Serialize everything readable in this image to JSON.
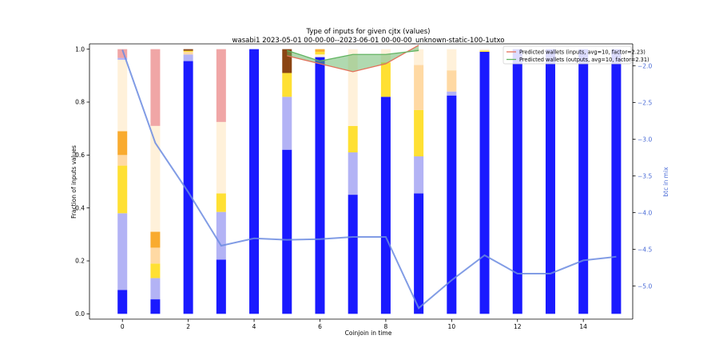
{
  "chart_data": {
    "type": "bar",
    "title": "Type of inputs for given cjtx (values)",
    "subtitle": "wasabi1 2023-05-01 00-00-00--2023-06-01 00-00-00_unknown-static-100-1utxo",
    "xlabel": "Coinjoin in time",
    "ylabel": "Fraction of inputs values",
    "y2label": "btc in mix",
    "xlim": [
      -1.0,
      15.5
    ],
    "ylim": [
      -0.02,
      1.02
    ],
    "y2lim": [
      -5.45,
      -1.7
    ],
    "x_ticks": [
      0,
      2,
      4,
      6,
      8,
      10,
      12,
      14
    ],
    "y_ticks": [
      0.0,
      0.2,
      0.4,
      0.6,
      0.8,
      1.0
    ],
    "y2_ticks": [
      -2.0,
      -2.5,
      -3.0,
      -3.5,
      -4.0,
      -4.5,
      -5.0
    ],
    "colors": {
      "blue": "#1a1aff",
      "lavender": "#b3b3f5",
      "yellow": "#ffe033",
      "orange": "#f9ab2f",
      "peach": "#ffd9a3",
      "cream": "#fff1da",
      "pink": "#f0a6a6",
      "brown": "#8b4513",
      "btc_line": "#6b8be0",
      "line_inputs": "#e3705a",
      "line_outputs": "#62b462"
    },
    "stacks": [
      [
        [
          "blue",
          0.09
        ],
        [
          "lavender",
          0.29
        ],
        [
          "yellow",
          0.18
        ],
        [
          "peach",
          0.04
        ],
        [
          "orange",
          0.09
        ],
        [
          "cream",
          0.27
        ],
        [
          "lavender",
          0.007
        ],
        [
          "pink",
          0.033
        ]
      ],
      [
        [
          "blue",
          0.055
        ],
        [
          "lavender",
          0.08
        ],
        [
          "yellow",
          0.055
        ],
        [
          "peach",
          0.06
        ],
        [
          "orange",
          0.06
        ],
        [
          "cream",
          0.4
        ],
        [
          "pink",
          0.29
        ]
      ],
      [
        [
          "blue",
          0.955
        ],
        [
          "lavender",
          0.025
        ],
        [
          "peach",
          0.01
        ],
        [
          "yellow",
          0.004
        ],
        [
          "brown",
          0.006
        ]
      ],
      [
        [
          "blue",
          0.205
        ],
        [
          "lavender",
          0.18
        ],
        [
          "yellow",
          0.07
        ],
        [
          "cream",
          0.27
        ],
        [
          "pink",
          0.275
        ]
      ],
      [
        [
          "blue",
          1.0
        ]
      ],
      [
        [
          "blue",
          0.62
        ],
        [
          "lavender",
          0.2
        ],
        [
          "yellow",
          0.09
        ],
        [
          "brown",
          0.09
        ]
      ],
      [
        [
          "blue",
          0.97
        ],
        [
          "cream",
          0.01
        ],
        [
          "yellow",
          0.01
        ],
        [
          "orange",
          0.01
        ]
      ],
      [
        [
          "blue",
          0.45
        ],
        [
          "lavender",
          0.16
        ],
        [
          "yellow",
          0.1
        ],
        [
          "cream",
          0.29
        ]
      ],
      [
        [
          "blue",
          0.82
        ],
        [
          "yellow",
          0.13
        ],
        [
          "cream",
          0.05
        ]
      ],
      [
        [
          "blue",
          0.455
        ],
        [
          "lavender",
          0.14
        ],
        [
          "yellow",
          0.175
        ],
        [
          "peach",
          0.17
        ],
        [
          "cream",
          0.06
        ]
      ],
      [
        [
          "blue",
          0.825
        ],
        [
          "lavender",
          0.015
        ],
        [
          "peach",
          0.08
        ],
        [
          "cream",
          0.08
        ]
      ],
      [
        [
          "blue",
          0.99
        ],
        [
          "yellow",
          0.005
        ],
        [
          "cream",
          0.005
        ]
      ],
      [
        [
          "blue",
          1.0
        ]
      ],
      [
        [
          "blue",
          1.0
        ]
      ],
      [
        [
          "blue",
          1.0
        ]
      ],
      [
        [
          "blue",
          1.0
        ]
      ]
    ],
    "btc_in_mix": {
      "x": [
        0,
        1,
        2,
        3,
        4,
        5,
        6,
        7,
        8,
        9,
        10,
        11,
        12,
        13,
        14,
        15
      ],
      "y": [
        -1.78,
        -3.05,
        -3.72,
        -4.45,
        -4.35,
        -4.37,
        -4.36,
        -4.33,
        -4.33,
        -5.3,
        -4.92,
        -4.58,
        -4.83,
        -4.83,
        -4.65,
        -4.6
      ]
    },
    "series": [
      {
        "name": "Predicted wallets (inputs, avg=10, factor=2.23)",
        "x": [
          5,
          6,
          7,
          8,
          9
        ],
        "y": [
          0.975,
          0.945,
          0.915,
          0.945,
          1.015
        ]
      },
      {
        "name": "Predicted wallets (outputs, avg=10, factor=2.31)",
        "x": [
          5,
          6,
          7,
          8,
          9
        ],
        "y": [
          0.995,
          0.955,
          0.98,
          0.98,
          0.995
        ]
      }
    ],
    "legend_position": "top-right"
  }
}
